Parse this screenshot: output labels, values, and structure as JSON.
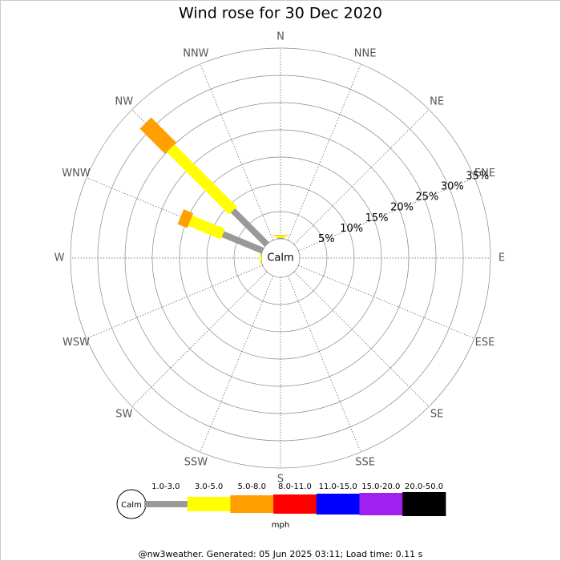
{
  "chart_data": {
    "type": "windrose",
    "title": "Wind rose for 30 Dec 2020",
    "categories": [
      "N",
      "NNE",
      "NE",
      "ENE",
      "E",
      "ESE",
      "SE",
      "SSE",
      "S",
      "SSW",
      "SW",
      "WSW",
      "W",
      "WNW",
      "NW",
      "NNW"
    ],
    "series": [
      {
        "name": "1.0-3.0",
        "color": "#999999",
        "values": [
          0.2,
          0,
          0,
          0,
          0,
          0,
          0,
          0,
          0,
          0,
          0,
          0,
          0,
          7.9,
          8.8,
          0
        ]
      },
      {
        "name": "3.0-5.0",
        "color": "#ffff00",
        "values": [
          0.4,
          0,
          0,
          0,
          0,
          0,
          0,
          0,
          0,
          0,
          0,
          0,
          0.3,
          6.5,
          16.2,
          0
        ]
      },
      {
        "name": "5.0-8.0",
        "color": "#ff9f00",
        "values": [
          0.1,
          0,
          0,
          0,
          0,
          0,
          0,
          0,
          0,
          0,
          0,
          0,
          0,
          1.9,
          6.5,
          0
        ]
      },
      {
        "name": "8.0-11.0",
        "color": "#ff0000",
        "values": [
          0,
          0,
          0,
          0,
          0,
          0,
          0,
          0,
          0,
          0,
          0,
          0,
          0,
          0,
          0,
          0
        ]
      },
      {
        "name": "11.0-15.0",
        "color": "#0000ff",
        "values": [
          0,
          0,
          0,
          0,
          0,
          0,
          0,
          0,
          0,
          0,
          0,
          0,
          0,
          0,
          0,
          0
        ]
      },
      {
        "name": "15.0-20.0",
        "color": "#a020f0",
        "values": [
          0,
          0,
          0,
          0,
          0,
          0,
          0,
          0,
          0,
          0,
          0,
          0,
          0,
          0,
          0,
          0
        ]
      },
      {
        "name": "20.0-50.0",
        "color": "#000000",
        "values": [
          0,
          0,
          0,
          0,
          0,
          0,
          0,
          0,
          0,
          0,
          0,
          0,
          0,
          0,
          0,
          0
        ]
      }
    ],
    "rlim": [
      0,
      35
    ],
    "rticks": [
      {
        "value": 5,
        "label": "5%"
      },
      {
        "value": 10,
        "label": "10%"
      },
      {
        "value": 15,
        "label": "15%"
      },
      {
        "value": 20,
        "label": "20%"
      },
      {
        "value": 25,
        "label": "25%"
      },
      {
        "value": 30,
        "label": "30%"
      },
      {
        "value": 35,
        "label": "35%"
      }
    ],
    "calm_label": "Calm",
    "legend_unit": "mph"
  },
  "footer": "@nw3weather. Generated: 05 Jun 2025 03:11; Load time: 0.11 s"
}
